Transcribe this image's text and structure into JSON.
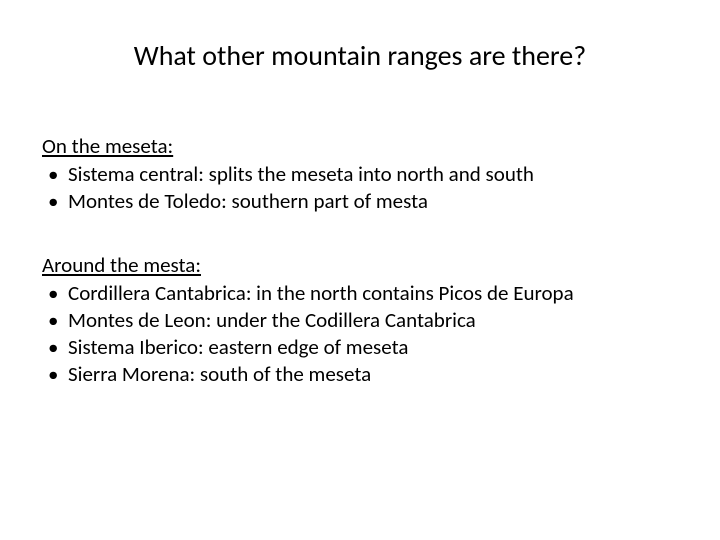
{
  "title": "What other mountain ranges are there?",
  "section1": {
    "heading": "On the meseta:",
    "items": [
      "Sistema central: splits the meseta into north and south",
      "Montes de Toledo: southern part of mesta"
    ]
  },
  "section2": {
    "heading": "Around the mesta:",
    "items": [
      "Cordillera Cantabrica: in the north contains Picos de Europa",
      "Montes de Leon: under the Codillera Cantabrica",
      "Sistema Iberico: eastern edge of meseta",
      "Sierra Morena: south of the meseta"
    ]
  },
  "styling": {
    "background_color": "#ffffff",
    "text_color": "#000000",
    "font_family": "Calibri",
    "title_fontsize": 28,
    "body_fontsize": 21,
    "slide_width": 720,
    "slide_height": 540
  }
}
